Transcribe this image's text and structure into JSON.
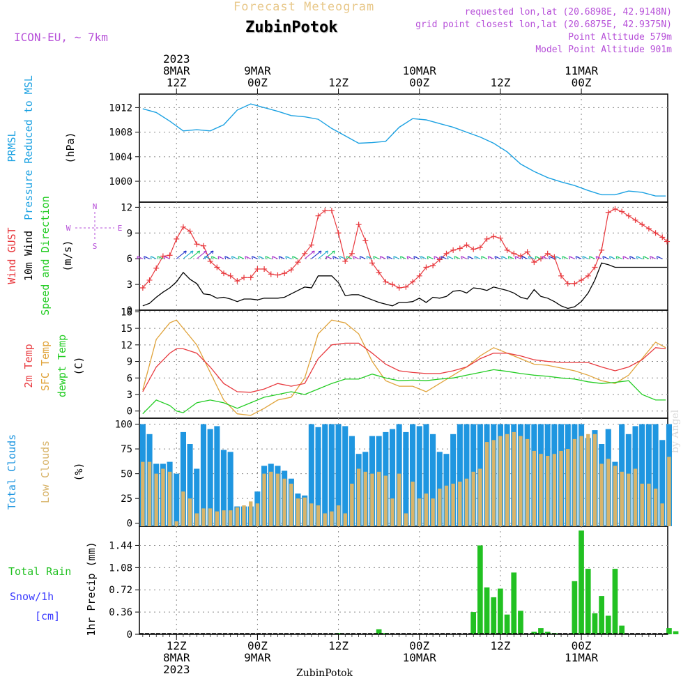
{
  "header": {
    "title": "Forecast Meteogram",
    "station": "ZubinPotok",
    "model": "ICON-EU, ~ 7km",
    "requested": "requested lon,lat (20.6898E, 42.9148N)",
    "closest": "grid point closest lon,lat (20.6875E, 42.9375N)",
    "point_altitude": "Point Altitude 579m",
    "model_altitude": "Model Point Altitude 901m"
  },
  "watermark": "by Angel",
  "footer_station": "ZubinPotok",
  "time_axis": {
    "top_labels": [
      {
        "lines": [
          "2023",
          "8MAR",
          "12Z"
        ],
        "x": 12
      },
      {
        "lines": [
          "9MAR",
          "00Z"
        ],
        "x": 24
      },
      {
        "lines": [
          "12Z"
        ],
        "x": 36
      },
      {
        "lines": [
          "10MAR",
          "00Z"
        ],
        "x": 48
      },
      {
        "lines": [
          "12Z"
        ],
        "x": 60
      },
      {
        "lines": [
          "11MAR",
          "00Z"
        ],
        "x": 72
      }
    ],
    "bottom_labels": [
      {
        "lines": [
          "12Z",
          "8MAR",
          "2023"
        ],
        "x": 12
      },
      {
        "lines": [
          "00Z",
          "9MAR"
        ],
        "x": 24
      },
      {
        "lines": [
          "12Z"
        ],
        "x": 36
      },
      {
        "lines": [
          "00Z",
          "10MAR"
        ],
        "x": 48
      },
      {
        "lines": [
          "12Z"
        ],
        "x": 60
      },
      {
        "lines": [
          "00Z",
          "11MAR"
        ],
        "x": 72
      }
    ],
    "x_range": [
      6.5,
      84.8
    ]
  },
  "colors": {
    "pressure": "#1ba1e2",
    "gust": "#e8383d",
    "wind": "#000000",
    "t2m": "#e8383d",
    "sfc": "#e0a33a",
    "dew": "#22cc22",
    "total_cloud": "#1f96e0",
    "low_cloud": "#d8b46a",
    "rain": "#22c122",
    "snow": "#3a3aff",
    "purple": "#b64fd8"
  },
  "panels": {
    "pressure": {
      "labels": [
        "PRMSL",
        "Pressure Reduced to MSL"
      ],
      "unit": "(hPa)",
      "yticks": [
        "1012",
        "1008",
        "1004",
        "1000"
      ]
    },
    "wind": {
      "labels": [
        "Wind GUST",
        "10m Wind",
        "Speed and Direction"
      ],
      "unit": "(m/s)",
      "yticks": [
        "12",
        "9",
        "6",
        "3",
        "0"
      ],
      "compass": {
        "n": "N",
        "s": "S",
        "e": "E",
        "w": "W"
      }
    },
    "temp": {
      "labels": [
        "2m Temp",
        "SFC Temp",
        "dewpt Temp"
      ],
      "unit": "(C)",
      "yticks": [
        "18",
        "15",
        "12",
        "9",
        "6",
        "3",
        "0"
      ]
    },
    "cloud": {
      "labels": [
        "Total Clouds",
        "Low Clouds"
      ],
      "unit": "(%)",
      "yticks": [
        "100",
        "75",
        "50",
        "25",
        "0"
      ]
    },
    "precip": {
      "labels": [
        "Total  Rain",
        "Snow/1h",
        "[cm]"
      ],
      "unit": "1hr Precip (mm)",
      "yticks": [
        "1.44",
        "1.08",
        "0.72",
        "0.36",
        "0"
      ]
    }
  },
  "chart_data": [
    {
      "type": "line",
      "title": "PRMSL Pressure Reduced to MSL",
      "ylabel": "hPa",
      "ylim": [
        996.6,
        1014.2
      ],
      "x": [
        7,
        9,
        11,
        13,
        15,
        17,
        19,
        21,
        23,
        25,
        27,
        29,
        31,
        33,
        35,
        37,
        39,
        41,
        43,
        45,
        47,
        49,
        51,
        53,
        55,
        57,
        59,
        61,
        63,
        65,
        67,
        69,
        71,
        73,
        75,
        77,
        79,
        81,
        83,
        84.5
      ],
      "values": [
        1011.8,
        1011.2,
        1009.8,
        1008.2,
        1008.4,
        1008.2,
        1009.2,
        1011.6,
        1012.6,
        1012.0,
        1011.4,
        1010.7,
        1010.5,
        1010.1,
        1008.6,
        1007.4,
        1006.2,
        1006.3,
        1006.5,
        1008.8,
        1010.2,
        1010.0,
        1009.4,
        1008.8,
        1008.0,
        1007.2,
        1006.2,
        1004.8,
        1002.8,
        1001.6,
        1000.6,
        999.9,
        999.3,
        998.5,
        997.8,
        997.8,
        998.4,
        998.2,
        997.6,
        997.6
      ],
      "grid": true
    },
    {
      "type": "line",
      "title": "Wind GUST / 10m Wind Speed and Direction",
      "ylabel": "m/s",
      "ylim": [
        0,
        12.6
      ],
      "x": [
        7,
        8,
        9,
        10,
        11,
        12,
        13,
        14,
        15,
        16,
        17,
        18,
        19,
        20,
        21,
        22,
        23,
        24,
        25,
        26,
        27,
        28,
        29,
        30,
        31,
        32,
        33,
        34,
        35,
        36,
        37,
        38,
        39,
        40,
        41,
        42,
        43,
        44,
        45,
        46,
        47,
        48,
        49,
        50,
        51,
        52,
        53,
        54,
        55,
        56,
        57,
        58,
        59,
        60,
        61,
        62,
        63,
        64,
        65,
        66,
        67,
        68,
        69,
        70,
        71,
        72,
        73,
        74,
        75,
        76,
        77,
        78,
        79,
        80,
        81,
        82,
        83,
        84,
        84.7
      ],
      "series": [
        {
          "name": "Wind GUST",
          "values": [
            2.6,
            3.5,
            4.9,
            6.3,
            6.4,
            8.3,
            9.7,
            9.2,
            7.7,
            7.5,
            5.7,
            5.0,
            4.3,
            4.0,
            3.4,
            3.8,
            3.8,
            4.8,
            4.8,
            4.2,
            4.1,
            4.3,
            4.7,
            5.6,
            6.6,
            7.6,
            11.0,
            11.6,
            11.6,
            9.0,
            5.7,
            6.6,
            10.0,
            8.1,
            5.5,
            4.4,
            3.3,
            3.0,
            2.6,
            2.7,
            3.3,
            4.0,
            5.0,
            5.2,
            5.9,
            6.6,
            7.0,
            7.2,
            7.6,
            7.1,
            7.3,
            8.3,
            8.6,
            8.4,
            7.0,
            6.6,
            6.3,
            6.8,
            5.6,
            6.0,
            6.6,
            6.2,
            4.0,
            3.1,
            3.1,
            3.5,
            4.0,
            5.0,
            7.0,
            11.4,
            11.8,
            11.5,
            11.0,
            10.5,
            10.0,
            9.5,
            9.0,
            8.5,
            8.0
          ]
        },
        {
          "name": "10m Wind",
          "values": [
            0.5,
            0.8,
            1.5,
            2.1,
            2.6,
            3.3,
            4.4,
            3.6,
            3.1,
            1.9,
            1.8,
            1.4,
            1.5,
            1.3,
            1.0,
            1.3,
            1.3,
            1.2,
            1.4,
            1.4,
            1.4,
            1.5,
            1.9,
            2.3,
            2.7,
            2.6,
            4.0,
            4.0,
            4.0,
            3.2,
            1.7,
            1.8,
            1.8,
            1.5,
            1.2,
            0.9,
            0.7,
            0.5,
            0.9,
            0.9,
            1.0,
            1.4,
            0.9,
            1.5,
            1.4,
            1.6,
            2.2,
            2.3,
            2.0,
            2.6,
            2.5,
            2.3,
            2.7,
            2.5,
            2.3,
            2.0,
            1.5,
            1.3,
            2.4,
            1.6,
            1.4,
            1.0,
            0.5,
            0.2,
            0.4,
            1.0,
            2.0,
            3.5,
            5.5,
            5.3,
            5.0,
            5.0,
            5.0,
            5.0,
            5.0,
            5.0,
            5.0,
            5.0,
            5.0
          ]
        }
      ],
      "grid": true
    },
    {
      "type": "line",
      "title": "2m Temp / SFC Temp / dewpt Temp",
      "ylabel": "C",
      "ylim": [
        -1.3,
        18.3
      ],
      "x": [
        7,
        9,
        11,
        12,
        13,
        15,
        17,
        19,
        21,
        23,
        25,
        27,
        29,
        31,
        33,
        35,
        37,
        39,
        41,
        43,
        45,
        47,
        49,
        51,
        53,
        55,
        57,
        59,
        61,
        63,
        65,
        67,
        69,
        71,
        73,
        75,
        77,
        79,
        81,
        83,
        84.5
      ],
      "series": [
        {
          "name": "2m Temp",
          "values": [
            3.5,
            8.0,
            10.5,
            11.3,
            11.3,
            10.5,
            8.0,
            5.0,
            3.5,
            3.4,
            4.0,
            5.0,
            4.5,
            5.0,
            9.5,
            12.0,
            12.3,
            12.3,
            10.5,
            8.5,
            7.3,
            7.0,
            6.8,
            6.8,
            7.3,
            8.0,
            9.5,
            10.5,
            10.5,
            10.0,
            9.3,
            9.0,
            8.8,
            8.8,
            8.8,
            8.0,
            7.3,
            8.0,
            9.3,
            11.5,
            11.3
          ]
        },
        {
          "name": "SFC Temp",
          "values": [
            3.8,
            13.0,
            16.0,
            16.5,
            15.0,
            12.0,
            7.0,
            2.0,
            -0.5,
            -0.8,
            0.5,
            2.0,
            2.5,
            6.0,
            14.0,
            16.5,
            16.0,
            14.0,
            9.0,
            5.5,
            4.5,
            4.5,
            3.5,
            5.0,
            6.5,
            8.0,
            10.0,
            11.5,
            10.5,
            9.5,
            8.5,
            8.3,
            7.8,
            7.3,
            6.5,
            5.5,
            5.0,
            6.5,
            9.5,
            12.5,
            11.5
          ]
        },
        {
          "name": "dewpt Temp",
          "values": [
            -0.5,
            2.0,
            1.0,
            0.0,
            -0.3,
            1.5,
            2.0,
            1.5,
            0.5,
            1.5,
            2.5,
            3.0,
            3.5,
            3.0,
            4.0,
            5.0,
            5.8,
            5.8,
            6.7,
            6.0,
            5.5,
            5.6,
            5.5,
            5.8,
            6.0,
            6.5,
            7.0,
            7.5,
            7.2,
            6.8,
            6.5,
            6.3,
            6.0,
            5.8,
            5.3,
            5.0,
            5.2,
            5.5,
            3.0,
            2.0,
            2.0
          ]
        }
      ],
      "grid": true
    },
    {
      "type": "bar",
      "title": "Total Clouds / Low Clouds",
      "ylabel": "%",
      "ylim": [
        -3,
        106
      ],
      "x_start": 7,
      "x_step": 1,
      "series": [
        {
          "name": "Total Clouds",
          "values": [
            100,
            90,
            60,
            60,
            62,
            50,
            92,
            80,
            55,
            100,
            95,
            98,
            74,
            72,
            17,
            17,
            17,
            32,
            58,
            60,
            58,
            53,
            45,
            30,
            28,
            100,
            97,
            100,
            100,
            100,
            98,
            88,
            70,
            72,
            88,
            88,
            92,
            95,
            100,
            92,
            100,
            98,
            100,
            90,
            72,
            70,
            90,
            100,
            100,
            100,
            100,
            100,
            100,
            100,
            100,
            100,
            100,
            100,
            100,
            100,
            100,
            100,
            100,
            100,
            100,
            100,
            86,
            94,
            80,
            95,
            62,
            100,
            90,
            98,
            100,
            100,
            100,
            84,
            100
          ]
        },
        {
          "name": "Low Clouds",
          "values": [
            62,
            62,
            50,
            55,
            52,
            2,
            32,
            25,
            10,
            15,
            15,
            12,
            13,
            13,
            16,
            18,
            22,
            20,
            50,
            52,
            50,
            45,
            40,
            25,
            26,
            20,
            18,
            10,
            12,
            18,
            10,
            40,
            55,
            52,
            50,
            52,
            48,
            25,
            50,
            10,
            42,
            25,
            30,
            25,
            35,
            38,
            40,
            42,
            45,
            52,
            55,
            82,
            84,
            88,
            90,
            92,
            88,
            85,
            73,
            70,
            68,
            70,
            73,
            75,
            85,
            88,
            90,
            90,
            60,
            65,
            58,
            52,
            50,
            55,
            40,
            40,
            35,
            20,
            67
          ]
        }
      ],
      "grid": true
    },
    {
      "type": "bar",
      "title": "Total Rain / Snow/1h [cm]",
      "ylabel": "1hr Precip (mm)",
      "ylim": [
        0,
        1.75
      ],
      "x_start": 7,
      "x_step": 1,
      "values": [
        0,
        0,
        0,
        0,
        0,
        0,
        0,
        0,
        0,
        0,
        0,
        0,
        0,
        0,
        0,
        0,
        0,
        0,
        0,
        0,
        0,
        0,
        0,
        0,
        0,
        0,
        0,
        0,
        0,
        0.02,
        0,
        0,
        0,
        0,
        0,
        0.08,
        0.02,
        0,
        0,
        0,
        0,
        0,
        0,
        0,
        0,
        0,
        0,
        0,
        0,
        0.36,
        1.44,
        0.76,
        0.6,
        0.74,
        0.32,
        1.0,
        0.38,
        0,
        0.04,
        0.1,
        0.04,
        0.02,
        0,
        0,
        0.86,
        1.68,
        1.06,
        0.34,
        0.62,
        0.3,
        1.06,
        0.14,
        0,
        0,
        0,
        0,
        0,
        0,
        0.1,
        0.05
      ],
      "grid": true
    }
  ]
}
